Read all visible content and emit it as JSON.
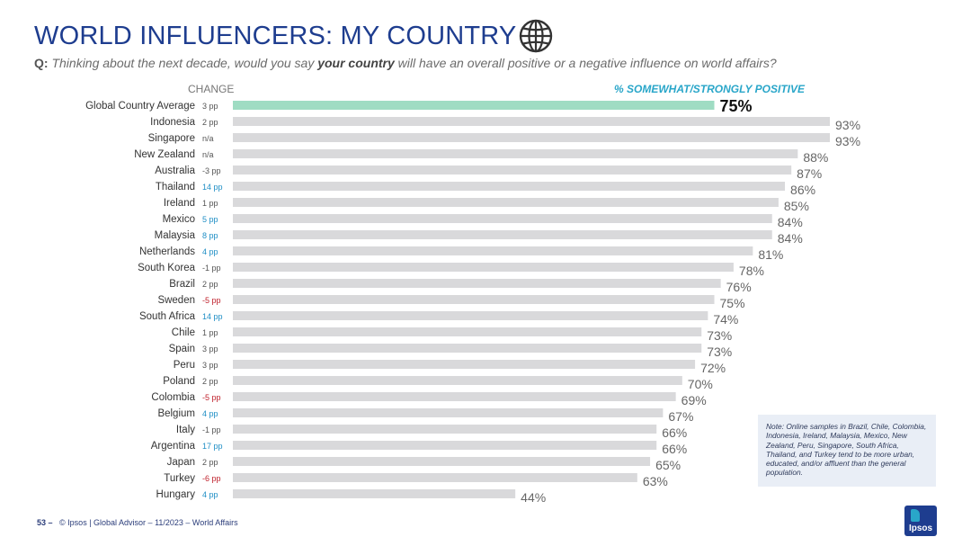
{
  "header": {
    "title": "WORLD INFLUENCERS: MY COUNTRY",
    "question_prefix": "Q:",
    "question_part1": "Thinking about the next decade, would you say ",
    "question_bold": "your country",
    "question_part2": " will have an overall positive or a negative influence on world affairs?"
  },
  "columns": {
    "change": "CHANGE",
    "positive": "% SOMEWHAT/STRONGLY POSITIVE"
  },
  "note": "Note: Online samples in Brazil, Chile, Colombia, Indonesia, Ireland, Malaysia, Mexico, New Zealand, Peru, Singapore, South Africa, Thailand, and Turkey tend to be more urban, educated, and/or affluent than the general population.",
  "footer": {
    "page": "53 –",
    "text": "© Ipsos | Global Advisor – 11/2023 – World Affairs"
  },
  "logo": {
    "text": "Ipsos"
  },
  "colors": {
    "highlight_bar": "#9fdcc3",
    "bar": "#d9d9db",
    "change_positive": "#1f8ec5",
    "change_negative": "#c0232e",
    "change_neutral": "#555555",
    "title": "#1e3d8f",
    "header_positive": "#29a6c9"
  },
  "chart_data": {
    "type": "bar",
    "orientation": "horizontal",
    "title": "",
    "xlabel": "",
    "ylabel": "",
    "xlim": [
      0,
      100
    ],
    "value_suffix": "%",
    "categories": [
      "Global Country Average",
      "Indonesia",
      "Singapore",
      "New Zealand",
      "Australia",
      "Thailand",
      "Ireland",
      "Mexico",
      "Malaysia",
      "Netherlands",
      "South Korea",
      "Brazil",
      "Sweden",
      "South Africa",
      "Chile",
      "Spain",
      "Peru",
      "Poland",
      "Colombia",
      "Belgium",
      "Italy",
      "Argentina",
      "Japan",
      "Turkey",
      "Hungary"
    ],
    "values": [
      75,
      93,
      93,
      88,
      87,
      86,
      85,
      84,
      84,
      81,
      78,
      76,
      75,
      74,
      73,
      73,
      72,
      70,
      69,
      67,
      66,
      66,
      65,
      63,
      44
    ],
    "change": [
      "3 pp",
      "2 pp",
      "n/a",
      "n/a",
      "-3 pp",
      "14 pp",
      "1 pp",
      "5 pp",
      "8 pp",
      "4 pp",
      "-1 pp",
      "2 pp",
      "-5 pp",
      "14 pp",
      "1 pp",
      "3 pp",
      "3 pp",
      "2 pp",
      "-5 pp",
      "4 pp",
      "-1 pp",
      "17 pp",
      "2 pp",
      "-6 pp",
      "4 pp"
    ],
    "change_color": [
      "neutral",
      "neutral",
      "neutral",
      "neutral",
      "neutral",
      "positive",
      "neutral",
      "positive",
      "positive",
      "positive",
      "neutral",
      "neutral",
      "negative",
      "positive",
      "neutral",
      "neutral",
      "neutral",
      "neutral",
      "negative",
      "positive",
      "neutral",
      "positive",
      "neutral",
      "negative",
      "positive"
    ],
    "highlight_index": 0
  }
}
